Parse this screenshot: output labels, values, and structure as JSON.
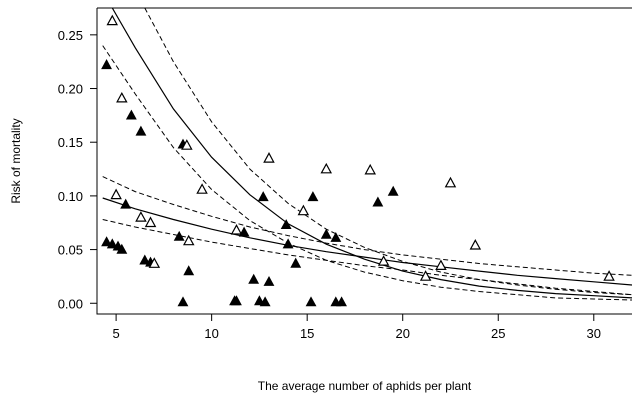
{
  "chart_data": {
    "type": "scatter",
    "title": "",
    "xlabel": "The average number of aphids per plant",
    "ylabel": "Risk of mortality",
    "xlim": [
      4,
      32
    ],
    "ylim": [
      -0.01,
      0.275
    ],
    "xticks": [
      5,
      10,
      15,
      20,
      25,
      30
    ],
    "yticks": [
      0.0,
      0.05,
      0.1,
      0.15,
      0.2,
      0.25
    ],
    "ytick_labels": [
      "0.00",
      "0.05",
      "0.10",
      "0.15",
      "0.20",
      "0.25"
    ],
    "grid": false,
    "legend": "none",
    "series": [
      {
        "marker": "filled-triangle",
        "points": [
          [
            4.5,
            0.222
          ],
          [
            4.5,
            0.057
          ],
          [
            4.8,
            0.055
          ],
          [
            5.1,
            0.053
          ],
          [
            5.3,
            0.05
          ],
          [
            5.5,
            0.092
          ],
          [
            5.8,
            0.175
          ],
          [
            6.3,
            0.16
          ],
          [
            6.5,
            0.04
          ],
          [
            6.8,
            0.038
          ],
          [
            8.3,
            0.062
          ],
          [
            8.5,
            0.148
          ],
          [
            8.5,
            0.001
          ],
          [
            8.8,
            0.03
          ],
          [
            11.2,
            0.002
          ],
          [
            11.3,
            0.002
          ],
          [
            11.7,
            0.066
          ],
          [
            12.2,
            0.022
          ],
          [
            12.5,
            0.002
          ],
          [
            12.7,
            0.099
          ],
          [
            12.8,
            0.001
          ],
          [
            13.0,
            0.02
          ],
          [
            13.9,
            0.073
          ],
          [
            14.0,
            0.055
          ],
          [
            14.4,
            0.037
          ],
          [
            15.2,
            0.001
          ],
          [
            15.3,
            0.099
          ],
          [
            16.0,
            0.064
          ],
          [
            16.5,
            0.061
          ],
          [
            16.5,
            0.001
          ],
          [
            16.8,
            0.001
          ],
          [
            18.7,
            0.094
          ],
          [
            19.5,
            0.104
          ]
        ]
      },
      {
        "marker": "open-triangle",
        "points": [
          [
            4.8,
            0.263
          ],
          [
            5.0,
            0.101
          ],
          [
            5.3,
            0.191
          ],
          [
            6.3,
            0.08
          ],
          [
            6.8,
            0.075
          ],
          [
            7.0,
            0.037
          ],
          [
            8.7,
            0.147
          ],
          [
            8.8,
            0.058
          ],
          [
            9.5,
            0.106
          ],
          [
            11.3,
            0.068
          ],
          [
            13.0,
            0.135
          ],
          [
            14.8,
            0.086
          ],
          [
            16.0,
            0.125
          ],
          [
            18.3,
            0.124
          ],
          [
            19.0,
            0.039
          ],
          [
            21.2,
            0.025
          ],
          [
            22.0,
            0.035
          ],
          [
            22.5,
            0.112
          ],
          [
            23.8,
            0.054
          ],
          [
            30.8,
            0.025
          ]
        ]
      }
    ],
    "curves": [
      {
        "style": "solid",
        "points": [
          [
            4.3,
            0.098
          ],
          [
            6,
            0.088
          ],
          [
            8,
            0.078
          ],
          [
            10,
            0.069
          ],
          [
            12,
            0.061
          ],
          [
            14,
            0.054
          ],
          [
            16,
            0.048
          ],
          [
            18,
            0.043
          ],
          [
            20,
            0.038
          ],
          [
            22,
            0.034
          ],
          [
            24,
            0.03
          ],
          [
            26,
            0.026
          ],
          [
            28,
            0.023
          ],
          [
            30,
            0.02
          ],
          [
            32,
            0.017
          ]
        ]
      },
      {
        "style": "dashed",
        "points": [
          [
            4.3,
            0.118
          ],
          [
            6,
            0.104
          ],
          [
            8,
            0.092
          ],
          [
            10,
            0.081
          ],
          [
            12,
            0.071
          ],
          [
            14,
            0.063
          ],
          [
            16,
            0.056
          ],
          [
            18,
            0.05
          ],
          [
            20,
            0.045
          ],
          [
            22,
            0.041
          ],
          [
            24,
            0.037
          ],
          [
            26,
            0.034
          ],
          [
            28,
            0.031
          ],
          [
            30,
            0.028
          ],
          [
            32,
            0.026
          ]
        ]
      },
      {
        "style": "dashed",
        "points": [
          [
            4.3,
            0.078
          ],
          [
            6,
            0.071
          ],
          [
            8,
            0.064
          ],
          [
            10,
            0.057
          ],
          [
            12,
            0.051
          ],
          [
            14,
            0.045
          ],
          [
            16,
            0.04
          ],
          [
            18,
            0.035
          ],
          [
            20,
            0.031
          ],
          [
            22,
            0.026
          ],
          [
            24,
            0.022
          ],
          [
            26,
            0.018
          ],
          [
            28,
            0.014
          ],
          [
            30,
            0.011
          ],
          [
            32,
            0.008
          ]
        ]
      },
      {
        "style": "solid",
        "points": [
          [
            4.8,
            0.275
          ],
          [
            6,
            0.238
          ],
          [
            8,
            0.181
          ],
          [
            10,
            0.136
          ],
          [
            12,
            0.101
          ],
          [
            14,
            0.074
          ],
          [
            16,
            0.055
          ],
          [
            18,
            0.041
          ],
          [
            20,
            0.03
          ],
          [
            22,
            0.022
          ],
          [
            24,
            0.016
          ],
          [
            26,
            0.012
          ],
          [
            28,
            0.009
          ],
          [
            30,
            0.007
          ],
          [
            32,
            0.005
          ]
        ]
      },
      {
        "style": "dashed",
        "points": [
          [
            6.5,
            0.275
          ],
          [
            8,
            0.225
          ],
          [
            10,
            0.169
          ],
          [
            12,
            0.125
          ],
          [
            14,
            0.093
          ],
          [
            16,
            0.069
          ],
          [
            18,
            0.052
          ],
          [
            20,
            0.039
          ],
          [
            22,
            0.029
          ],
          [
            24,
            0.022
          ],
          [
            26,
            0.017
          ],
          [
            28,
            0.013
          ],
          [
            30,
            0.01
          ],
          [
            32,
            0.008
          ]
        ]
      },
      {
        "style": "dashed",
        "points": [
          [
            4.3,
            0.24
          ],
          [
            6,
            0.195
          ],
          [
            8,
            0.145
          ],
          [
            10,
            0.106
          ],
          [
            12,
            0.077
          ],
          [
            14,
            0.056
          ],
          [
            16,
            0.04
          ],
          [
            18,
            0.029
          ],
          [
            20,
            0.021
          ],
          [
            22,
            0.015
          ],
          [
            24,
            0.011
          ],
          [
            26,
            0.008
          ],
          [
            28,
            0.005
          ],
          [
            30,
            0.004
          ],
          [
            32,
            0.003
          ]
        ]
      }
    ]
  }
}
